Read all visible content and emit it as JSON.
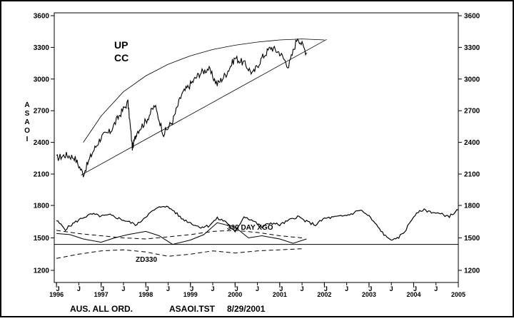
{
  "chart_data": {
    "type": "line",
    "ylabel": "ASAOI",
    "footer": {
      "index_name": "AUS. ALL ORD.",
      "file_name": "ASAOI.TST",
      "date": "8/29/2001"
    },
    "annotations": {
      "up_label": "UP",
      "cc_label": "CC",
      "xgo_label": "330 DAY XGO",
      "zd_label": "ZD330"
    },
    "axes": {
      "y_ticks": [
        "3600",
        "3300",
        "3000",
        "2700",
        "2400",
        "2100",
        "1800",
        "1500",
        "1200"
      ],
      "y_ticks_left": [
        "3600",
        "3300",
        "3000",
        "2700",
        "2400",
        "2100",
        "1800",
        "1500",
        "1200"
      ],
      "x_year_labels": [
        "1996",
        "1997",
        "1998",
        "1999",
        "2000",
        "2001",
        "2002",
        "2003",
        "2004",
        "2005"
      ],
      "x_month_labels": [
        "J",
        "J",
        "J",
        "J",
        "J",
        "J",
        "J",
        "J",
        "J",
        "J",
        "J",
        "J",
        "J",
        "J",
        "J",
        "J",
        "J",
        "J"
      ]
    },
    "upper_panel": {
      "ylim": [
        2000,
        3600
      ],
      "price_series": {
        "name": "",
        "x": [
          1996.0,
          1996.2,
          1996.4,
          1996.6,
          1996.8,
          1997.0,
          1997.2,
          1997.4,
          1997.6,
          1997.7,
          1997.8,
          1998.0,
          1998.2,
          1998.4,
          1998.6,
          1998.8,
          1999.0,
          1999.2,
          1999.4,
          1999.6,
          1999.8,
          2000.0,
          2000.2,
          2000.4,
          2000.6,
          2000.8,
          2001.0,
          2001.2,
          2001.4,
          2001.6
        ],
        "y": [
          2250,
          2280,
          2260,
          2100,
          2300,
          2450,
          2500,
          2650,
          2780,
          2350,
          2500,
          2600,
          2750,
          2480,
          2600,
          2850,
          2950,
          3050,
          3100,
          2950,
          3050,
          3200,
          3150,
          3050,
          3200,
          3300,
          3250,
          3120,
          3400,
          3250
        ]
      },
      "upper_curve": {
        "x": [
          1996.6,
          1997.0,
          1997.5,
          1998.0,
          1998.5,
          1999.0,
          1999.5,
          2000.0,
          2000.5,
          2001.0,
          2001.5,
          2002.0
        ],
        "y": [
          2400,
          2650,
          2880,
          3030,
          3140,
          3220,
          3280,
          3320,
          3350,
          3370,
          3380,
          3370
        ]
      },
      "support_line": {
        "x": [
          1996.55,
          2002.05
        ],
        "y": [
          2090,
          3375
        ]
      }
    },
    "lower_panel": {
      "ylim": [
        1200,
        1800
      ],
      "osc_series": {
        "x": [
          1996.0,
          1996.2,
          1996.4,
          1996.6,
          1996.8,
          1997.0,
          1997.2,
          1997.4,
          1997.6,
          1997.8,
          1998.0,
          1998.2,
          1998.4,
          1998.6,
          1998.8,
          1999.0,
          1999.2,
          1999.4,
          1999.6,
          1999.8,
          2000.0,
          2000.2,
          2000.4,
          2000.6,
          2000.8,
          2001.0,
          2001.2,
          2001.4,
          2001.6,
          2001.8,
          2002.0,
          2002.2,
          2002.4,
          2002.6,
          2002.8,
          2003.0,
          2003.2,
          2003.4,
          2003.6,
          2003.8,
          2004.0,
          2004.2,
          2004.4,
          2004.6,
          2004.8,
          2005.0
        ],
        "y": [
          1660,
          1580,
          1640,
          1690,
          1720,
          1700,
          1710,
          1680,
          1650,
          1620,
          1700,
          1760,
          1800,
          1760,
          1680,
          1640,
          1600,
          1610,
          1680,
          1650,
          1550,
          1700,
          1660,
          1600,
          1640,
          1620,
          1660,
          1700,
          1650,
          1620,
          1680,
          1690,
          1700,
          1720,
          1760,
          1700,
          1600,
          1500,
          1480,
          1560,
          1700,
          1760,
          1740,
          1720,
          1700,
          1760
        ]
      },
      "xgo_series": {
        "x": [
          1996.0,
          1996.3,
          1996.6,
          1997.0,
          1997.3,
          1997.6,
          1998.0,
          1998.3,
          1998.6,
          1999.0,
          1999.3,
          1999.6,
          2000.0,
          2000.3,
          2000.6,
          2001.0,
          2001.3,
          2001.6
        ],
        "y": [
          1540,
          1530,
          1490,
          1460,
          1500,
          1530,
          1560,
          1520,
          1440,
          1480,
          1530,
          1640,
          1600,
          1500,
          1520,
          1490,
          1450,
          1490
        ]
      },
      "dash_upper": {
        "x": [
          1996.0,
          1996.5,
          1997.0,
          1997.5,
          1998.0,
          1998.5,
          1999.0,
          1999.5,
          2000.0,
          2000.5,
          2001.0,
          2001.5
        ],
        "y": [
          1570,
          1540,
          1520,
          1500,
          1490,
          1510,
          1530,
          1560,
          1570,
          1550,
          1520,
          1500
        ]
      },
      "dash_lower": {
        "x": [
          1996.0,
          1996.5,
          1997.0,
          1997.5,
          1998.0,
          1998.5,
          1999.0,
          1999.5,
          2000.0,
          2000.5,
          2001.0,
          2001.5
        ],
        "y": [
          1310,
          1350,
          1380,
          1390,
          1370,
          1330,
          1350,
          1380,
          1360,
          1380,
          1390,
          1400
        ]
      },
      "baseline": 1440
    },
    "xlim": [
      1995.95,
      2005.0
    ]
  }
}
